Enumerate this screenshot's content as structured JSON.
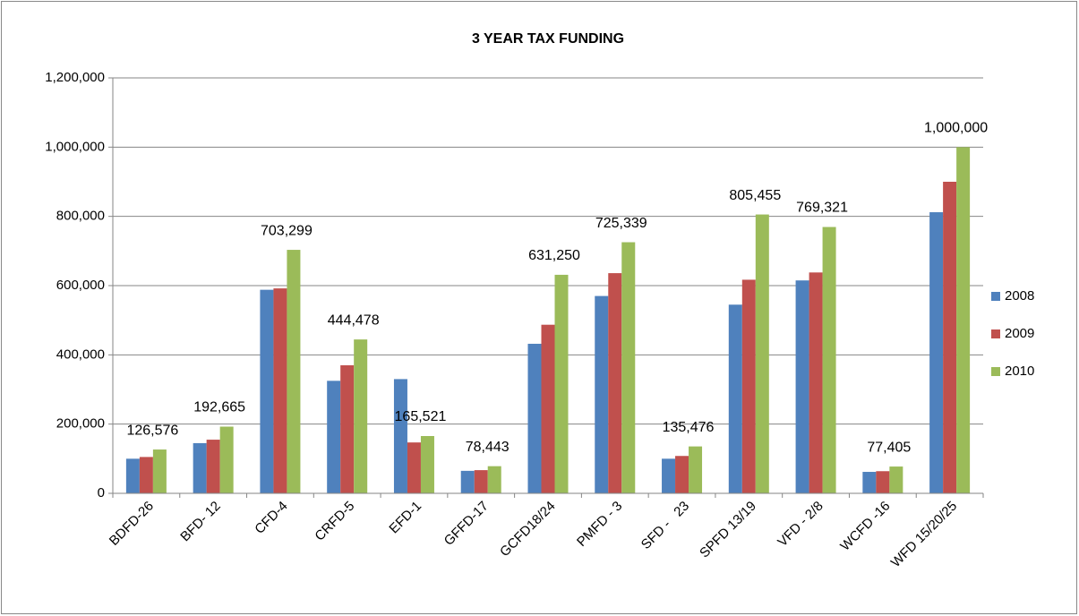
{
  "chart_data": {
    "type": "bar",
    "title": "3 YEAR TAX FUNDING",
    "categories": [
      "BDFD-26",
      "BFD- 12",
      "CFD-4",
      "CRFD-5",
      "EFD-1",
      "GFFD-17",
      "GCFD18/24",
      "PMFD - 3",
      "SFD -   23",
      "SPFD 13/19",
      "VFD - 2/8",
      "WCFD -16",
      "WFD 15/20/25"
    ],
    "series": [
      {
        "name": "2008",
        "color": "#4f81bd",
        "values": [
          100000,
          145000,
          588000,
          325000,
          330000,
          65000,
          432000,
          570000,
          100000,
          545000,
          615000,
          62000,
          812000
        ]
      },
      {
        "name": "2009",
        "color": "#c0504d",
        "values": [
          105000,
          155000,
          592000,
          370000,
          147000,
          67000,
          487000,
          636000,
          108000,
          617000,
          638000,
          64000,
          900000
        ]
      },
      {
        "name": "2010",
        "color": "#9bbb59",
        "values": [
          126576,
          192665,
          703299,
          444478,
          165521,
          78443,
          631250,
          725339,
          135476,
          805455,
          769321,
          77405,
          1000000
        ],
        "value_labels": [
          "126,576",
          "192,665",
          "703,299",
          "444,478",
          "165,521",
          "78,443",
          "631,250",
          "725,339",
          "135,476",
          "805,455",
          "769,321",
          "77,405",
          "1,000,000"
        ]
      }
    ],
    "ylim": [
      0,
      1200000
    ],
    "yticks": [
      0,
      {
        "value": 200000,
        "label": "200,000"
      },
      {
        "value": 400000,
        "label": "400,000"
      },
      {
        "value": 600000,
        "label": "600,000"
      },
      {
        "value": 800000,
        "label": "800,000"
      },
      {
        "value": 1000000,
        "label": "1,000,000"
      },
      {
        "value": 1200000,
        "label": "1,200,000"
      }
    ],
    "grid": true,
    "legend": "right"
  }
}
